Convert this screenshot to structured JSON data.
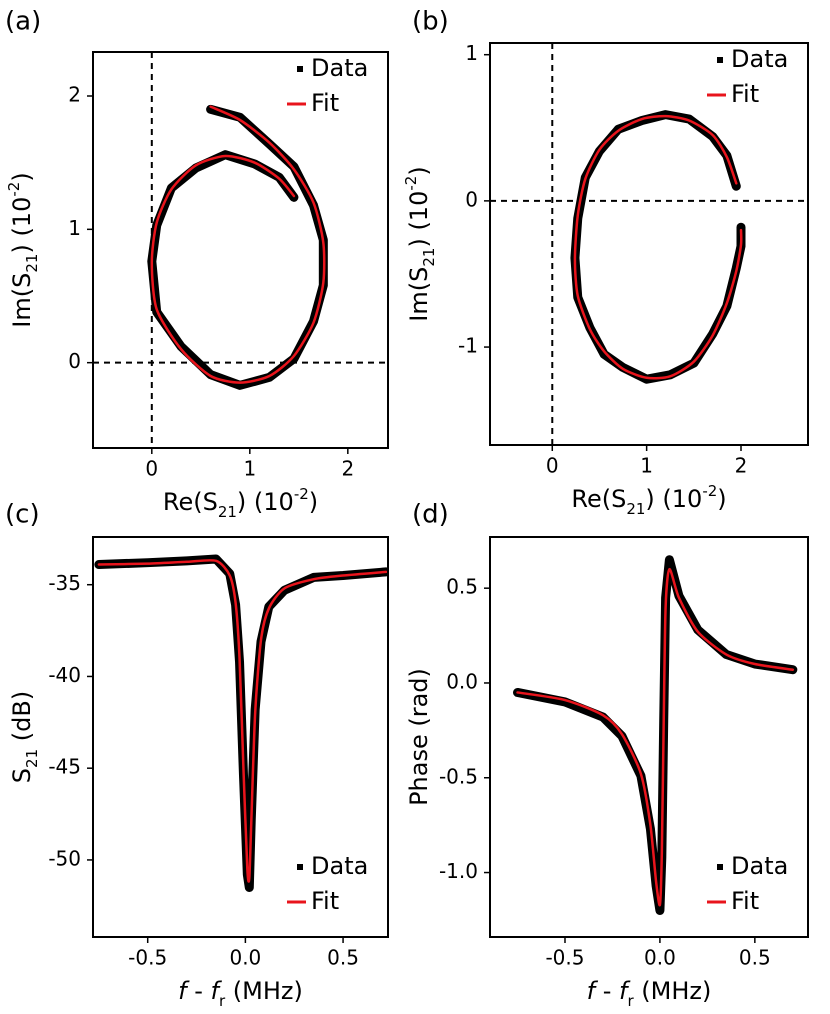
{
  "chart_data": [
    {
      "type": "line",
      "panel_label": "(a)",
      "xlabel": [
        {
          "t": "Re(S"
        },
        {
          "t": "21",
          "shift": "sub"
        },
        {
          "t": ") (10"
        },
        {
          "t": "-2",
          "shift": "super"
        },
        {
          "t": ")"
        }
      ],
      "ylabel": [
        {
          "t": "Im(S"
        },
        {
          "t": "21",
          "shift": "sub"
        },
        {
          "t": ") (10"
        },
        {
          "t": "-2",
          "shift": "super"
        },
        {
          "t": ")"
        }
      ],
      "xlim": [
        -0.6,
        2.41
      ],
      "ylim": [
        -0.64,
        2.33
      ],
      "xticks": [
        0,
        1,
        2
      ],
      "yticks": [
        0,
        1,
        2
      ],
      "vlines": [
        0
      ],
      "hlines": [
        0
      ],
      "legend": "upper right",
      "series": [
        {
          "name": "Data",
          "color": "#000000",
          "style": "band",
          "x": [
            0.6,
            0.9,
            1.2,
            1.45,
            1.65,
            1.75,
            1.75,
            1.65,
            1.45,
            1.2,
            0.9,
            0.6,
            0.3,
            0.05,
            0,
            0.05,
            0.2,
            0.45,
            0.75,
            1.05,
            1.3,
            1.45
          ],
          "values": [
            1.9,
            1.84,
            1.64,
            1.47,
            1.18,
            0.92,
            0.58,
            0.31,
            0.03,
            -0.11,
            -0.17,
            -0.09,
            0.12,
            0.38,
            0.76,
            1.03,
            1.31,
            1.46,
            1.56,
            1.49,
            1.39,
            1.24
          ]
        },
        {
          "name": "Fit",
          "color": "#e8141c",
          "style": "line",
          "x": [
            0.6,
            0.9,
            1.2,
            1.45,
            1.65,
            1.75,
            1.75,
            1.65,
            1.45,
            1.2,
            0.9,
            0.6,
            0.3,
            0.05,
            0,
            0.05,
            0.2,
            0.45,
            0.75,
            1.05,
            1.3,
            1.45
          ],
          "values": [
            1.92,
            1.82,
            1.65,
            1.45,
            1.2,
            0.9,
            0.6,
            0.3,
            0.05,
            -0.1,
            -0.15,
            -0.1,
            0.1,
            0.4,
            0.75,
            1.05,
            1.3,
            1.48,
            1.55,
            1.5,
            1.38,
            1.25
          ]
        }
      ]
    },
    {
      "type": "line",
      "panel_label": "(b)",
      "xlabel": [
        {
          "t": "Re(S"
        },
        {
          "t": "21",
          "shift": "sub"
        },
        {
          "t": ") (10"
        },
        {
          "t": "-2",
          "shift": "super"
        },
        {
          "t": ")"
        }
      ],
      "ylabel": [
        {
          "t": "Im(S"
        },
        {
          "t": "21",
          "shift": "sub"
        },
        {
          "t": ") (10"
        },
        {
          "t": "-2",
          "shift": "super"
        },
        {
          "t": ")"
        }
      ],
      "xlim": [
        -0.66,
        2.71
      ],
      "ylim": [
        -1.67,
        1.08
      ],
      "xticks": [
        0,
        1,
        2
      ],
      "yticks": [
        -1,
        0,
        1
      ],
      "vlines": [
        0
      ],
      "hlines": [
        0
      ],
      "legend": "upper right",
      "series": [
        {
          "name": "Data",
          "color": "#000000",
          "style": "band",
          "x": [
            1.95,
            1.85,
            1.7,
            1.45,
            1.2,
            0.95,
            0.7,
            0.5,
            0.35,
            0.27,
            0.24,
            0.27,
            0.4,
            0.55,
            0.75,
            1.0,
            1.25,
            1.5,
            1.7,
            1.85,
            1.95,
            2.0,
            2.0
          ],
          "values": [
            0.1,
            0.31,
            0.44,
            0.56,
            0.59,
            0.55,
            0.49,
            0.34,
            0.16,
            -0.12,
            -0.39,
            -0.66,
            -0.87,
            -1.05,
            -1.14,
            -1.22,
            -1.19,
            -1.11,
            -0.91,
            -0.72,
            -0.46,
            -0.31,
            -0.18
          ]
        },
        {
          "name": "Fit",
          "color": "#e8141c",
          "style": "line",
          "x": [
            1.95,
            1.85,
            1.7,
            1.45,
            1.2,
            0.95,
            0.7,
            0.5,
            0.35,
            0.27,
            0.24,
            0.27,
            0.4,
            0.55,
            0.75,
            1.0,
            1.25,
            1.5,
            1.7,
            1.85,
            1.95,
            2.0,
            2.0
          ],
          "values": [
            0.12,
            0.3,
            0.45,
            0.55,
            0.58,
            0.56,
            0.48,
            0.35,
            0.15,
            -0.1,
            -0.4,
            -0.65,
            -0.88,
            -1.03,
            -1.15,
            -1.21,
            -1.2,
            -1.1,
            -0.92,
            -0.7,
            -0.48,
            -0.3,
            -0.2
          ]
        }
      ]
    },
    {
      "type": "line",
      "panel_label": "(c)",
      "xlabel": [
        {
          "t": "f",
          "style": "italic"
        },
        {
          "t": " - "
        },
        {
          "t": "f",
          "style": "italic"
        },
        {
          "t": "r",
          "shift": "sub"
        },
        {
          "t": " (MHz)"
        }
      ],
      "ylabel": [
        {
          "t": "S"
        },
        {
          "t": "21",
          "shift": "sub"
        },
        {
          "t": " (dB)"
        }
      ],
      "xlim": [
        -0.78,
        0.73
      ],
      "ylim": [
        -54.2,
        -32.4
      ],
      "xticks": [
        -0.5,
        {
          "value": 0,
          "label": "0.0"
        },
        0.5
      ],
      "yticks": [
        -35,
        -40,
        -45,
        -50
      ],
      "legend": "lower right",
      "series": [
        {
          "name": "Data",
          "color": "#000000",
          "style": "band",
          "x": [
            -0.75,
            -0.5,
            -0.3,
            -0.15,
            -0.08,
            -0.05,
            -0.03,
            -0.01,
            0.01,
            0.02,
            0.03,
            0.05,
            0.08,
            0.12,
            0.2,
            0.35,
            0.5,
            0.72
          ],
          "values": [
            -33.9,
            -33.8,
            -33.7,
            -33.6,
            -34.4,
            -36.1,
            -39.2,
            -45.3,
            -50.8,
            -51.5,
            -47.8,
            -41.8,
            -38.1,
            -36.2,
            -35.3,
            -34.6,
            -34.5,
            -34.3
          ]
        },
        {
          "name": "Fit",
          "color": "#e8141c",
          "style": "line",
          "x": [
            -0.75,
            -0.5,
            -0.3,
            -0.15,
            -0.08,
            -0.05,
            -0.03,
            -0.01,
            0.01,
            0.02,
            0.03,
            0.05,
            0.08,
            0.12,
            0.2,
            0.35,
            0.5,
            0.72
          ],
          "values": [
            -33.9,
            -33.85,
            -33.75,
            -33.7,
            -34.5,
            -36,
            -39,
            -45,
            -50.5,
            -51,
            -48,
            -42,
            -38,
            -36.3,
            -35.2,
            -34.7,
            -34.5,
            -34.3
          ]
        }
      ]
    },
    {
      "type": "line",
      "panel_label": "(d)",
      "xlabel": [
        {
          "t": "f",
          "style": "italic"
        },
        {
          "t": " - "
        },
        {
          "t": "f",
          "style": "italic"
        },
        {
          "t": "r",
          "shift": "sub"
        },
        {
          "t": " (MHz)"
        }
      ],
      "ylabel": [
        {
          "t": "Phase (rad)"
        }
      ],
      "xlim": [
        -0.895,
        0.78
      ],
      "ylim": [
        -1.34,
        0.77
      ],
      "xticks": [
        -0.5,
        {
          "value": 0,
          "label": "0.0"
        },
        0.5
      ],
      "yticks": [
        0.5,
        {
          "value": 0,
          "label": "0.0"
        },
        -0.5,
        {
          "value": -1,
          "label": "-1.0"
        }
      ],
      "legend": "lower right",
      "series": [
        {
          "name": "Data",
          "color": "#000000",
          "style": "band",
          "x": [
            -0.75,
            -0.5,
            -0.3,
            -0.2,
            -0.1,
            -0.05,
            -0.02,
            0,
            0.01,
            0.02,
            0.03,
            0.05,
            0.1,
            0.2,
            0.35,
            0.5,
            0.7
          ],
          "values": [
            -0.05,
            -0.1,
            -0.18,
            -0.28,
            -0.49,
            -0.77,
            -1.07,
            -1.2,
            -0.92,
            -0.2,
            0.45,
            0.65,
            0.46,
            0.28,
            0.15,
            0.1,
            0.07
          ]
        },
        {
          "name": "Fit",
          "color": "#e8141c",
          "style": "line",
          "x": [
            -0.75,
            -0.5,
            -0.3,
            -0.2,
            -0.1,
            -0.05,
            -0.02,
            0,
            0.01,
            0.02,
            0.03,
            0.05,
            0.1,
            0.2,
            0.35,
            0.5,
            0.7
          ],
          "values": [
            -0.05,
            -0.09,
            -0.17,
            -0.27,
            -0.48,
            -0.75,
            -1.05,
            -1.17,
            -0.9,
            -0.2,
            0.4,
            0.6,
            0.45,
            0.27,
            0.15,
            0.1,
            0.07
          ]
        }
      ]
    }
  ]
}
